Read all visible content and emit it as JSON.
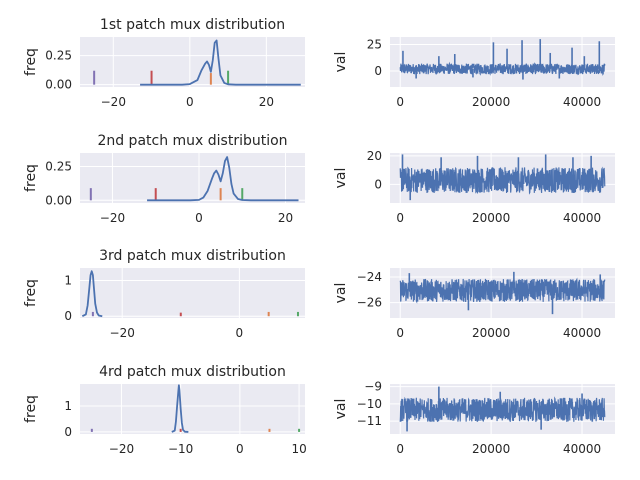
{
  "chart_data": [
    {
      "type": "line",
      "title": "1st patch mux distribution",
      "ylabel": "freq",
      "xlim": [
        -28.7,
        30.1
      ],
      "ylim": [
        -0.02,
        0.41
      ],
      "xticks": [
        -20,
        0,
        20
      ],
      "yticks": [
        0.0,
        0.25
      ],
      "ytick_labels": [
        "0.00",
        "0.25"
      ],
      "grid": true,
      "density": {
        "x": [
          -13,
          -2,
          0,
          2,
          3,
          4,
          4.5,
          5,
          5.5,
          6,
          6.5,
          7,
          7.5,
          8,
          9,
          10,
          12,
          14,
          20,
          29
        ],
        "y": [
          0,
          0,
          0.005,
          0.04,
          0.12,
          0.18,
          0.2,
          0.17,
          0.11,
          0.21,
          0.36,
          0.38,
          0.22,
          0.08,
          0.015,
          0.003,
          0,
          0,
          0,
          0
        ]
      },
      "markers": [
        {
          "x": -25,
          "height": 0.12,
          "color": "#8172b3"
        },
        {
          "x": -10,
          "height": 0.12,
          "color": "#c44e52"
        },
        {
          "x": 5.5,
          "height": 0.1,
          "color": "#dd8452"
        },
        {
          "x": 10,
          "height": 0.12,
          "color": "#55a868"
        }
      ]
    },
    {
      "type": "line",
      "title": "",
      "ylabel": "val",
      "xlim": [
        -2250,
        47250
      ],
      "ylim": [
        -15,
        32
      ],
      "xticks": [
        0,
        20000,
        40000
      ],
      "yticks": [
        0,
        25
      ],
      "baseline": 2,
      "amplitude": 5,
      "spikes": [
        {
          "x": 600,
          "y": 19
        },
        {
          "x": 8500,
          "y": 14
        },
        {
          "x": 12000,
          "y": 16
        },
        {
          "x": 20500,
          "y": 27
        },
        {
          "x": 23500,
          "y": 21
        },
        {
          "x": 26800,
          "y": 29
        },
        {
          "x": 27000,
          "y": -8
        },
        {
          "x": 30800,
          "y": 30
        },
        {
          "x": 33000,
          "y": 17
        },
        {
          "x": 37800,
          "y": 22
        },
        {
          "x": 40500,
          "y": 14
        },
        {
          "x": 43800,
          "y": 28
        },
        {
          "x": 3500,
          "y": -7
        },
        {
          "x": 16000,
          "y": -6
        },
        {
          "x": 35000,
          "y": -7
        }
      ],
      "grid": true
    },
    {
      "type": "line",
      "title": "2nd patch mux distribution",
      "ylabel": "freq",
      "xlim": [
        -27.5,
        24.5
      ],
      "ylim": [
        -0.02,
        0.35
      ],
      "xticks": [
        -20,
        0,
        20
      ],
      "yticks": [
        0.0,
        0.25
      ],
      "ytick_labels": [
        "0.00",
        "0.25"
      ],
      "grid": true,
      "density": {
        "x": [
          -12,
          -2,
          0,
          1,
          2,
          3,
          3.5,
          4,
          4.5,
          5,
          5.5,
          6,
          6.5,
          7,
          7.5,
          8,
          9,
          10,
          12,
          23
        ],
        "y": [
          0,
          0,
          0.003,
          0.02,
          0.07,
          0.16,
          0.2,
          0.22,
          0.19,
          0.14,
          0.2,
          0.29,
          0.32,
          0.24,
          0.12,
          0.05,
          0.01,
          0.002,
          0,
          0
        ]
      },
      "markers": [
        {
          "x": -25,
          "height": 0.09,
          "color": "#8172b3"
        },
        {
          "x": -10,
          "height": 0.09,
          "color": "#c44e52"
        },
        {
          "x": 5,
          "height": 0.09,
          "color": "#dd8452"
        },
        {
          "x": 10,
          "height": 0.09,
          "color": "#55a868"
        }
      ]
    },
    {
      "type": "line",
      "title": "",
      "ylabel": "val",
      "xlim": [
        -2250,
        47250
      ],
      "ylim": [
        -13,
        22
      ],
      "xticks": [
        0,
        20000,
        40000
      ],
      "yticks": [
        0,
        20
      ],
      "baseline": 3,
      "amplitude": 9,
      "spikes": [
        {
          "x": 500,
          "y": 21
        },
        {
          "x": 2200,
          "y": -11
        },
        {
          "x": 9000,
          "y": 19
        },
        {
          "x": 17000,
          "y": 20
        },
        {
          "x": 26000,
          "y": 19
        },
        {
          "x": 32000,
          "y": 21
        },
        {
          "x": 38000,
          "y": 19
        },
        {
          "x": 42000,
          "y": 20
        }
      ],
      "grid": true
    },
    {
      "type": "line",
      "title": "3rd patch mux distribution",
      "ylabel": "freq",
      "xlim": [
        -27.2,
        11.2
      ],
      "ylim": [
        -0.05,
        1.35
      ],
      "xticks": [
        -20,
        0
      ],
      "yticks": [
        0,
        1
      ],
      "ytick_labels": [
        "0",
        "1"
      ],
      "grid": true,
      "density": {
        "x": [
          -26.8,
          -26.2,
          -25.9,
          -25.6,
          -25.4,
          -25.2,
          -25.0,
          -24.8,
          -24.6,
          -24.3,
          -24.0,
          -23.4
        ],
        "y": [
          0,
          0.05,
          0.3,
          0.8,
          1.15,
          1.26,
          1.15,
          0.75,
          0.35,
          0.1,
          0.02,
          0
        ]
      },
      "markers": [
        {
          "x": -25,
          "height": 0.12,
          "color": "#8172b3"
        },
        {
          "x": -10,
          "height": 0.1,
          "color": "#c44e52"
        },
        {
          "x": 5,
          "height": 0.12,
          "color": "#dd8452"
        },
        {
          "x": 10,
          "height": 0.12,
          "color": "#55a868"
        }
      ]
    },
    {
      "type": "line",
      "title": "",
      "ylabel": "val",
      "xlim": [
        -2250,
        47250
      ],
      "ylim": [
        -27.2,
        -23.3
      ],
      "xticks": [
        0,
        20000,
        40000
      ],
      "yticks": [
        -24,
        -26
      ],
      "baseline": -25.05,
      "amplitude": 0.9,
      "spikes": [
        {
          "x": 2000,
          "y": -23.7
        },
        {
          "x": 15000,
          "y": -26.6
        },
        {
          "x": 25000,
          "y": -23.6
        },
        {
          "x": 33500,
          "y": -26.9
        },
        {
          "x": 44000,
          "y": -23.8
        }
      ],
      "grid": true
    },
    {
      "type": "line",
      "title": "4rd patch mux distribution",
      "ylabel": "freq",
      "xlim": [
        -27.0,
        11.0
      ],
      "ylim": [
        -0.08,
        1.85
      ],
      "xticks": [
        -20,
        -10,
        0,
        10
      ],
      "yticks": [
        0,
        1
      ],
      "ytick_labels": [
        "0",
        "1"
      ],
      "grid": true,
      "density": {
        "x": [
          -11.5,
          -11.0,
          -10.8,
          -10.6,
          -10.4,
          -10.3,
          -10.2,
          -10.0,
          -9.8,
          -9.6,
          -9.3,
          -8.7
        ],
        "y": [
          0,
          0.05,
          0.4,
          1.0,
          1.55,
          1.8,
          1.6,
          0.9,
          0.35,
          0.08,
          0.01,
          0
        ]
      },
      "markers": [
        {
          "x": -25,
          "height": 0.12,
          "color": "#8172b3"
        },
        {
          "x": -10,
          "height": 0.12,
          "color": "#c44e52"
        },
        {
          "x": 5,
          "height": 0.12,
          "color": "#dd8452"
        },
        {
          "x": 10,
          "height": 0.12,
          "color": "#55a868"
        }
      ]
    },
    {
      "type": "line",
      "title": "",
      "ylabel": "val",
      "xlim": [
        -2250,
        47250
      ],
      "ylim": [
        -11.75,
        -8.85
      ],
      "xticks": [
        0,
        20000,
        40000
      ],
      "yticks": [
        -9,
        -10,
        -11
      ],
      "baseline": -10.35,
      "amplitude": 0.7,
      "spikes": [
        {
          "x": 8500,
          "y": -9.0
        },
        {
          "x": 1500,
          "y": -11.6
        },
        {
          "x": 22000,
          "y": -9.3
        },
        {
          "x": 31000,
          "y": -11.5
        },
        {
          "x": 40000,
          "y": -9.4
        }
      ],
      "grid": true
    }
  ],
  "style": {
    "bg": "#eaeaf2",
    "grid": "#ffffff",
    "line": "#4c72b0",
    "text": "#262626"
  }
}
